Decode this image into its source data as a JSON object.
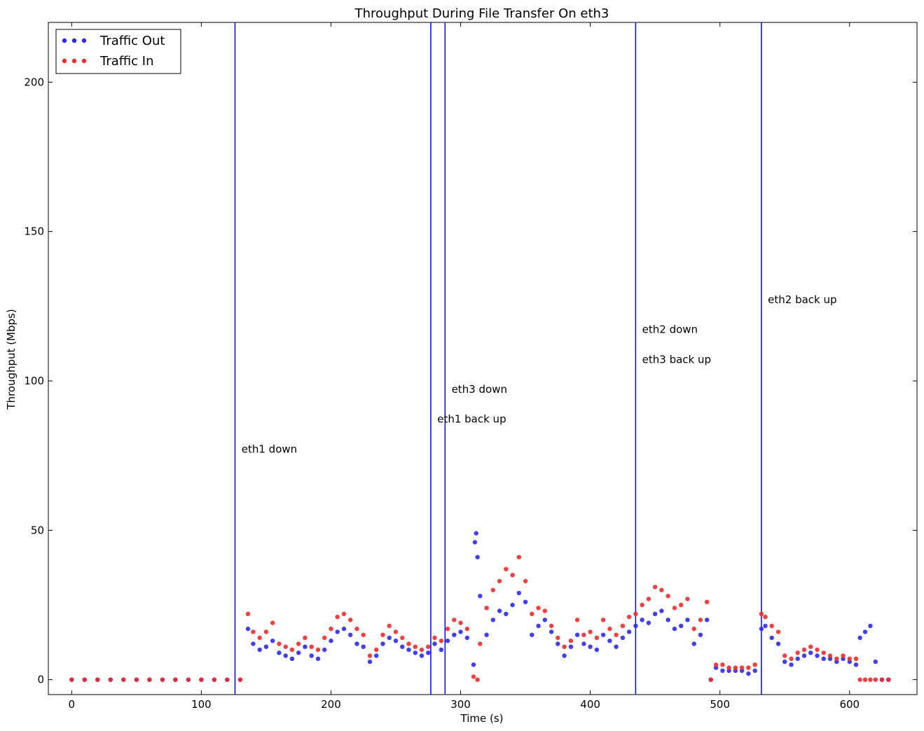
{
  "chart_data": {
    "type": "scatter",
    "title": "Throughput During File Transfer On eth3",
    "xlabel": "Time (s)",
    "ylabel": "Throughput (Mbps)",
    "xlim": [
      -18,
      652
    ],
    "ylim": [
      -5,
      220
    ],
    "xticks": [
      0,
      100,
      200,
      300,
      400,
      500,
      600
    ],
    "yticks": [
      0,
      50,
      100,
      150,
      200
    ],
    "grid": false,
    "legend_position": "top-left",
    "series": [
      {
        "name": "Traffic Out",
        "color": "#2b2bf0",
        "points": [
          [
            0,
            0
          ],
          [
            10,
            0
          ],
          [
            20,
            0
          ],
          [
            30,
            0
          ],
          [
            40,
            0
          ],
          [
            50,
            0
          ],
          [
            60,
            0
          ],
          [
            70,
            0
          ],
          [
            80,
            0
          ],
          [
            90,
            0
          ],
          [
            100,
            0
          ],
          [
            110,
            0
          ],
          [
            120,
            0
          ],
          [
            130,
            0
          ],
          [
            136,
            17
          ],
          [
            140,
            12
          ],
          [
            145,
            10
          ],
          [
            150,
            11
          ],
          [
            155,
            13
          ],
          [
            160,
            9
          ],
          [
            165,
            8
          ],
          [
            170,
            7
          ],
          [
            175,
            9
          ],
          [
            180,
            11
          ],
          [
            185,
            8
          ],
          [
            190,
            7
          ],
          [
            195,
            10
          ],
          [
            200,
            13
          ],
          [
            205,
            16
          ],
          [
            210,
            17
          ],
          [
            215,
            15
          ],
          [
            220,
            12
          ],
          [
            225,
            11
          ],
          [
            230,
            6
          ],
          [
            235,
            8
          ],
          [
            240,
            12
          ],
          [
            245,
            14
          ],
          [
            250,
            13
          ],
          [
            255,
            11
          ],
          [
            260,
            10
          ],
          [
            265,
            9
          ],
          [
            270,
            8
          ],
          [
            275,
            9
          ],
          [
            280,
            12
          ],
          [
            285,
            10
          ],
          [
            290,
            13
          ],
          [
            295,
            15
          ],
          [
            300,
            16
          ],
          [
            305,
            14
          ],
          [
            310,
            5
          ],
          [
            311,
            46
          ],
          [
            312,
            49
          ],
          [
            313,
            41
          ],
          [
            315,
            28
          ],
          [
            320,
            15
          ],
          [
            325,
            20
          ],
          [
            330,
            23
          ],
          [
            335,
            22
          ],
          [
            340,
            25
          ],
          [
            345,
            29
          ],
          [
            350,
            26
          ],
          [
            355,
            15
          ],
          [
            360,
            18
          ],
          [
            365,
            20
          ],
          [
            370,
            16
          ],
          [
            375,
            12
          ],
          [
            380,
            8
          ],
          [
            385,
            11
          ],
          [
            390,
            15
          ],
          [
            395,
            12
          ],
          [
            400,
            11
          ],
          [
            405,
            10
          ],
          [
            410,
            15
          ],
          [
            415,
            13
          ],
          [
            420,
            11
          ],
          [
            425,
            14
          ],
          [
            430,
            16
          ],
          [
            435,
            18
          ],
          [
            440,
            20
          ],
          [
            445,
            19
          ],
          [
            450,
            22
          ],
          [
            455,
            23
          ],
          [
            460,
            20
          ],
          [
            465,
            17
          ],
          [
            470,
            18
          ],
          [
            475,
            20
          ],
          [
            480,
            12
          ],
          [
            485,
            15
          ],
          [
            490,
            20
          ],
          [
            493,
            0
          ],
          [
            497,
            4
          ],
          [
            502,
            3
          ],
          [
            507,
            3
          ],
          [
            512,
            3
          ],
          [
            517,
            3
          ],
          [
            522,
            2
          ],
          [
            527,
            3
          ],
          [
            532,
            17
          ],
          [
            535,
            18
          ],
          [
            540,
            14
          ],
          [
            545,
            12
          ],
          [
            550,
            6
          ],
          [
            555,
            5
          ],
          [
            560,
            7
          ],
          [
            565,
            8
          ],
          [
            570,
            9
          ],
          [
            575,
            8
          ],
          [
            580,
            7
          ],
          [
            585,
            7
          ],
          [
            590,
            6
          ],
          [
            595,
            7
          ],
          [
            600,
            6
          ],
          [
            605,
            5
          ],
          [
            608,
            14
          ],
          [
            612,
            16
          ],
          [
            616,
            18
          ],
          [
            620,
            6
          ],
          [
            625,
            0
          ],
          [
            630,
            0
          ]
        ]
      },
      {
        "name": "Traffic In",
        "color": "#f02b2b",
        "points": [
          [
            0,
            0
          ],
          [
            10,
            0
          ],
          [
            20,
            0
          ],
          [
            30,
            0
          ],
          [
            40,
            0
          ],
          [
            50,
            0
          ],
          [
            60,
            0
          ],
          [
            70,
            0
          ],
          [
            80,
            0
          ],
          [
            90,
            0
          ],
          [
            100,
            0
          ],
          [
            110,
            0
          ],
          [
            120,
            0
          ],
          [
            130,
            0
          ],
          [
            136,
            22
          ],
          [
            140,
            16
          ],
          [
            145,
            14
          ],
          [
            150,
            16
          ],
          [
            155,
            19
          ],
          [
            160,
            12
          ],
          [
            165,
            11
          ],
          [
            170,
            10
          ],
          [
            175,
            12
          ],
          [
            180,
            14
          ],
          [
            185,
            11
          ],
          [
            190,
            10
          ],
          [
            195,
            14
          ],
          [
            200,
            17
          ],
          [
            205,
            21
          ],
          [
            210,
            22
          ],
          [
            215,
            20
          ],
          [
            220,
            17
          ],
          [
            225,
            15
          ],
          [
            230,
            8
          ],
          [
            235,
            10
          ],
          [
            240,
            15
          ],
          [
            245,
            18
          ],
          [
            250,
            16
          ],
          [
            255,
            14
          ],
          [
            260,
            12
          ],
          [
            265,
            11
          ],
          [
            270,
            10
          ],
          [
            275,
            11
          ],
          [
            280,
            14
          ],
          [
            285,
            13
          ],
          [
            290,
            17
          ],
          [
            295,
            20
          ],
          [
            300,
            19
          ],
          [
            305,
            17
          ],
          [
            310,
            1
          ],
          [
            313,
            0
          ],
          [
            315,
            12
          ],
          [
            320,
            24
          ],
          [
            325,
            30
          ],
          [
            330,
            33
          ],
          [
            335,
            37
          ],
          [
            340,
            35
          ],
          [
            345,
            41
          ],
          [
            350,
            33
          ],
          [
            355,
            22
          ],
          [
            360,
            24
          ],
          [
            365,
            23
          ],
          [
            370,
            18
          ],
          [
            375,
            14
          ],
          [
            380,
            11
          ],
          [
            385,
            13
          ],
          [
            390,
            20
          ],
          [
            395,
            15
          ],
          [
            400,
            16
          ],
          [
            405,
            14
          ],
          [
            410,
            20
          ],
          [
            415,
            17
          ],
          [
            420,
            15
          ],
          [
            425,
            18
          ],
          [
            430,
            21
          ],
          [
            435,
            22
          ],
          [
            440,
            25
          ],
          [
            445,
            27
          ],
          [
            450,
            31
          ],
          [
            455,
            30
          ],
          [
            460,
            28
          ],
          [
            465,
            24
          ],
          [
            470,
            25
          ],
          [
            475,
            27
          ],
          [
            480,
            17
          ],
          [
            485,
            20
          ],
          [
            490,
            26
          ],
          [
            493,
            0
          ],
          [
            497,
            5
          ],
          [
            502,
            5
          ],
          [
            507,
            4
          ],
          [
            512,
            4
          ],
          [
            517,
            4
          ],
          [
            522,
            4
          ],
          [
            527,
            5
          ],
          [
            532,
            22
          ],
          [
            535,
            21
          ],
          [
            540,
            18
          ],
          [
            545,
            16
          ],
          [
            550,
            8
          ],
          [
            555,
            7
          ],
          [
            560,
            9
          ],
          [
            565,
            10
          ],
          [
            570,
            11
          ],
          [
            575,
            10
          ],
          [
            580,
            9
          ],
          [
            585,
            8
          ],
          [
            590,
            7
          ],
          [
            595,
            8
          ],
          [
            600,
            7
          ],
          [
            605,
            7
          ],
          [
            608,
            0
          ],
          [
            612,
            0
          ],
          [
            616,
            0
          ],
          [
            620,
            0
          ],
          [
            625,
            0
          ],
          [
            630,
            0
          ]
        ]
      }
    ],
    "vlines": [
      {
        "x": 126,
        "color": "#0000ff"
      },
      {
        "x": 277,
        "color": "#0000ff"
      },
      {
        "x": 288,
        "color": "#0000ff"
      },
      {
        "x": 435,
        "color": "#0000ff"
      },
      {
        "x": 532,
        "color": "#0000ff"
      }
    ],
    "annotations": [
      {
        "text": "eth1 down",
        "x": 131,
        "y": 76
      },
      {
        "text": "eth3 down",
        "x": 293,
        "y": 96
      },
      {
        "text": "eth1 back up",
        "x": 282,
        "y": 86
      },
      {
        "text": "eth2 down",
        "x": 440,
        "y": 116
      },
      {
        "text": "eth3 back up",
        "x": 440,
        "y": 106
      },
      {
        "text": "eth2 back up",
        "x": 537,
        "y": 126
      }
    ]
  }
}
